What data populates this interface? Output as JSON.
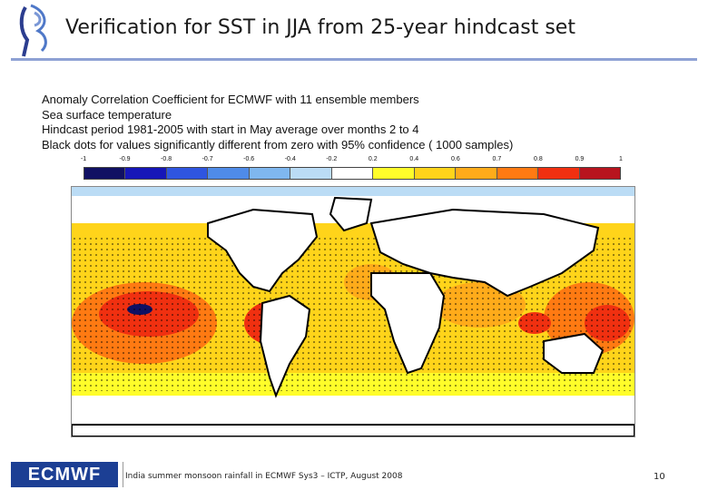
{
  "slide": {
    "title": "Verification for SST in JJA from 25-year hindcast set",
    "page_number": "10",
    "footer_text": "India summer monsoon rainfall in ECMWF Sys3 – ICTP, August 2008",
    "footer_logo_text": "ECMWF"
  },
  "plot": {
    "header_lines": [
      "Anomaly Correlation Coefficient for ECMWF        with 11 ensemble members",
      "Sea surface temperature",
      "Hindcast period 1981-2005 with start in May average over months  2 to  4",
      "Black dots for values significantly different from zero with 95% confidence ( 1000 samples)"
    ],
    "colorbar_ticks": [
      "-1",
      "-0.9",
      "-0.8",
      "-0.7",
      "-0.6",
      "-0.4",
      "-0.2",
      "0.2",
      "0.4",
      "0.6",
      "0.7",
      "0.8",
      "0.9",
      "1"
    ],
    "colorbar_colors": [
      "#101063",
      "#1616b8",
      "#2f55e0",
      "#4f8be8",
      "#7fb7ef",
      "#bbdcf5",
      "#ffffff",
      "#fffd2a",
      "#ffd41a",
      "#ffab1a",
      "#ff7a12",
      "#f03010",
      "#b8141e"
    ]
  },
  "colors": {
    "title_rule": "#8ea1d4",
    "footer_logo_bg": "#1c3f94",
    "land": "#ffffff"
  }
}
